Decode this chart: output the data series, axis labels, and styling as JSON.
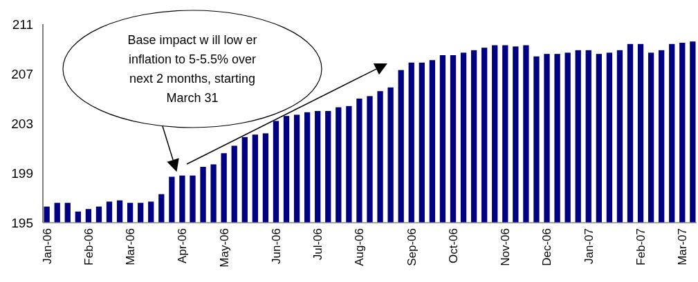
{
  "chart_data": {
    "type": "bar",
    "categories": [
      "Jan-06",
      null,
      null,
      null,
      "Feb-06",
      null,
      null,
      null,
      "Mar-06",
      null,
      null,
      null,
      null,
      "Apr-06",
      null,
      null,
      null,
      "May-06",
      null,
      null,
      null,
      null,
      "Jun-06",
      null,
      null,
      null,
      "Jul-06",
      null,
      null,
      null,
      "Aug-06",
      null,
      null,
      null,
      null,
      "Sep-06",
      null,
      null,
      null,
      "Oct-06",
      null,
      null,
      null,
      null,
      "Nov-06",
      null,
      null,
      null,
      "Dec-06",
      null,
      null,
      null,
      "Jan-07",
      null,
      null,
      null,
      null,
      "Feb-07",
      null,
      null,
      null,
      "Mar-07",
      null
    ],
    "values": [
      196.3,
      196.6,
      196.6,
      195.9,
      196.1,
      196.3,
      196.7,
      196.8,
      196.6,
      196.6,
      196.7,
      197.3,
      198.7,
      198.8,
      198.8,
      199.5,
      199.7,
      200.6,
      201.2,
      201.9,
      202.1,
      202.2,
      203.2,
      203.6,
      203.7,
      203.9,
      204,
      204,
      204.3,
      204.4,
      205,
      205.2,
      205.6,
      205.9,
      207.3,
      207.9,
      207.9,
      208.1,
      208.5,
      208.5,
      208.7,
      208.9,
      209.1,
      209.3,
      209.3,
      209.2,
      209.3,
      208.4,
      208.6,
      208.6,
      208.7,
      208.9,
      208.9,
      208.6,
      208.7,
      208.9,
      209.4,
      209.4,
      208.7,
      208.9,
      209.4,
      209.5,
      209.6
    ],
    "color": "#000080",
    "ylim": [
      195,
      211
    ],
    "yticks": [
      195,
      199,
      203,
      207,
      211
    ],
    "annotations": [
      "Base impact w ill low er inflation to 5-5.5% over next 2 months, starting March 31"
    ]
  }
}
